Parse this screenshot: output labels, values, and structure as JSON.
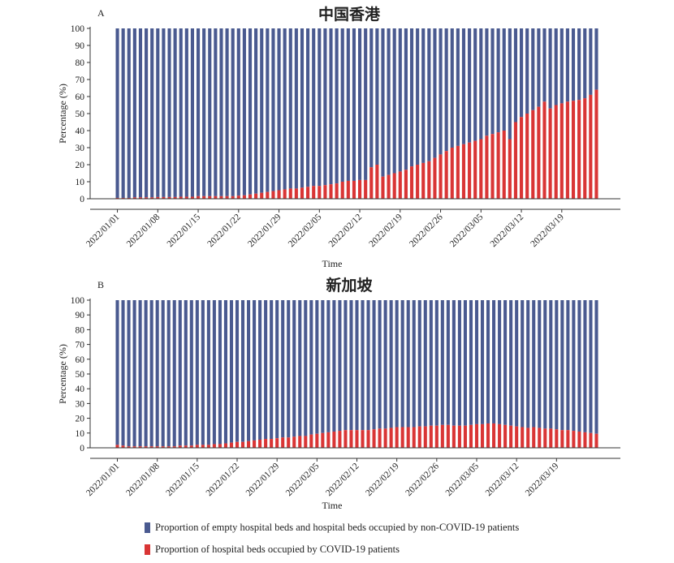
{
  "colors": {
    "empty": "#4a5a90",
    "covid": "#d93535"
  },
  "legend": {
    "empty": "Proportion of empty hospital beds and hospital beds occupied by non-COVID-19 patients",
    "covid": "Proportion of hospital beds occupied by COVID-19 patients"
  },
  "chart_data": [
    {
      "panel": "A",
      "title": "中国香港",
      "type": "bar",
      "stacked": true,
      "xlabel": "Time",
      "ylabel": "Percentage (%)",
      "ylim": [
        0,
        100
      ],
      "yticks": [
        0,
        10,
        20,
        30,
        40,
        50,
        60,
        70,
        80,
        90,
        100
      ],
      "xticks": [
        "2022/01/01",
        "2022/01/08",
        "2022/01/15",
        "2022/01/22",
        "2022/01/29",
        "2022/02/05",
        "2022/02/12",
        "2022/02/19",
        "2022/02/26",
        "2022/03/05",
        "2022/03/12",
        "2022/03/19"
      ],
      "x_start": "2022/01/01",
      "x_end": "2022/03/24",
      "series": [
        {
          "name": "Proportion of hospital beds occupied by COVID-19 patients",
          "values": [
            0.5,
            0.5,
            0.5,
            0.8,
            0.8,
            0.8,
            0.8,
            1,
            1,
            1,
            1,
            1.2,
            1.2,
            1.2,
            1.5,
            1.5,
            1.5,
            1.5,
            1.5,
            1.5,
            1.5,
            1.8,
            2,
            2.5,
            3,
            3.5,
            4,
            4.5,
            5,
            5.5,
            6,
            6,
            6.5,
            7,
            7.5,
            7.5,
            8,
            8.5,
            9,
            10,
            10.5,
            10.5,
            11,
            11,
            18.5,
            20,
            13,
            14,
            15,
            16,
            17,
            19,
            20,
            21,
            22,
            24,
            26,
            28,
            30,
            31,
            32,
            33,
            34,
            35,
            37,
            38,
            39,
            40,
            35,
            45,
            48,
            50,
            52,
            54,
            57,
            53,
            55,
            56,
            57,
            57.5,
            58,
            59,
            61,
            64
          ]
        },
        {
          "name": "Proportion of empty hospital beds and hospital beds occupied by non-COVID-19 patients",
          "values": "remainder to 100"
        }
      ]
    },
    {
      "panel": "B",
      "title": "新加坡",
      "type": "bar",
      "stacked": true,
      "xlabel": "Time",
      "ylabel": "Percentage (%)",
      "ylim": [
        0,
        100
      ],
      "yticks": [
        0,
        10,
        20,
        30,
        40,
        50,
        60,
        70,
        80,
        90,
        100
      ],
      "xticks": [
        "2022/01/01",
        "2022/01/08",
        "2022/01/15",
        "2022/01/22",
        "2022/01/29",
        "2022/02/05",
        "2022/02/12",
        "2022/02/19",
        "2022/02/26",
        "2022/03/05",
        "2022/03/12",
        "2022/03/19"
      ],
      "x_start": "2022/01/01",
      "x_end": "2022/03/24",
      "series": [
        {
          "name": "Proportion of hospital beds occupied by COVID-19 patients",
          "values": [
            2,
            1.5,
            1,
            1,
            1,
            1,
            1,
            1,
            1,
            1,
            1,
            1.5,
            1.5,
            1.5,
            2,
            2,
            2,
            2.5,
            2.5,
            3,
            3.5,
            4,
            4,
            4.5,
            5,
            5.5,
            6,
            6,
            6.5,
            7,
            7,
            7.5,
            8,
            8,
            9,
            9.5,
            10,
            10.5,
            11,
            11.5,
            12,
            12,
            12,
            12,
            12,
            12.5,
            13,
            13,
            13.5,
            14,
            14,
            14,
            14,
            14.5,
            14.5,
            15,
            15,
            15.5,
            15.5,
            15,
            15,
            15,
            15.5,
            16,
            16,
            16.5,
            16.5,
            16,
            15.5,
            15,
            14.5,
            14,
            13.5,
            14,
            13.5,
            13,
            13,
            12.5,
            12,
            12,
            11.5,
            11,
            10.5,
            10,
            9.5
          ]
        },
        {
          "name": "Proportion of empty hospital beds and hospital beds occupied by non-COVID-19 patients",
          "values": "remainder to 100"
        }
      ]
    }
  ]
}
